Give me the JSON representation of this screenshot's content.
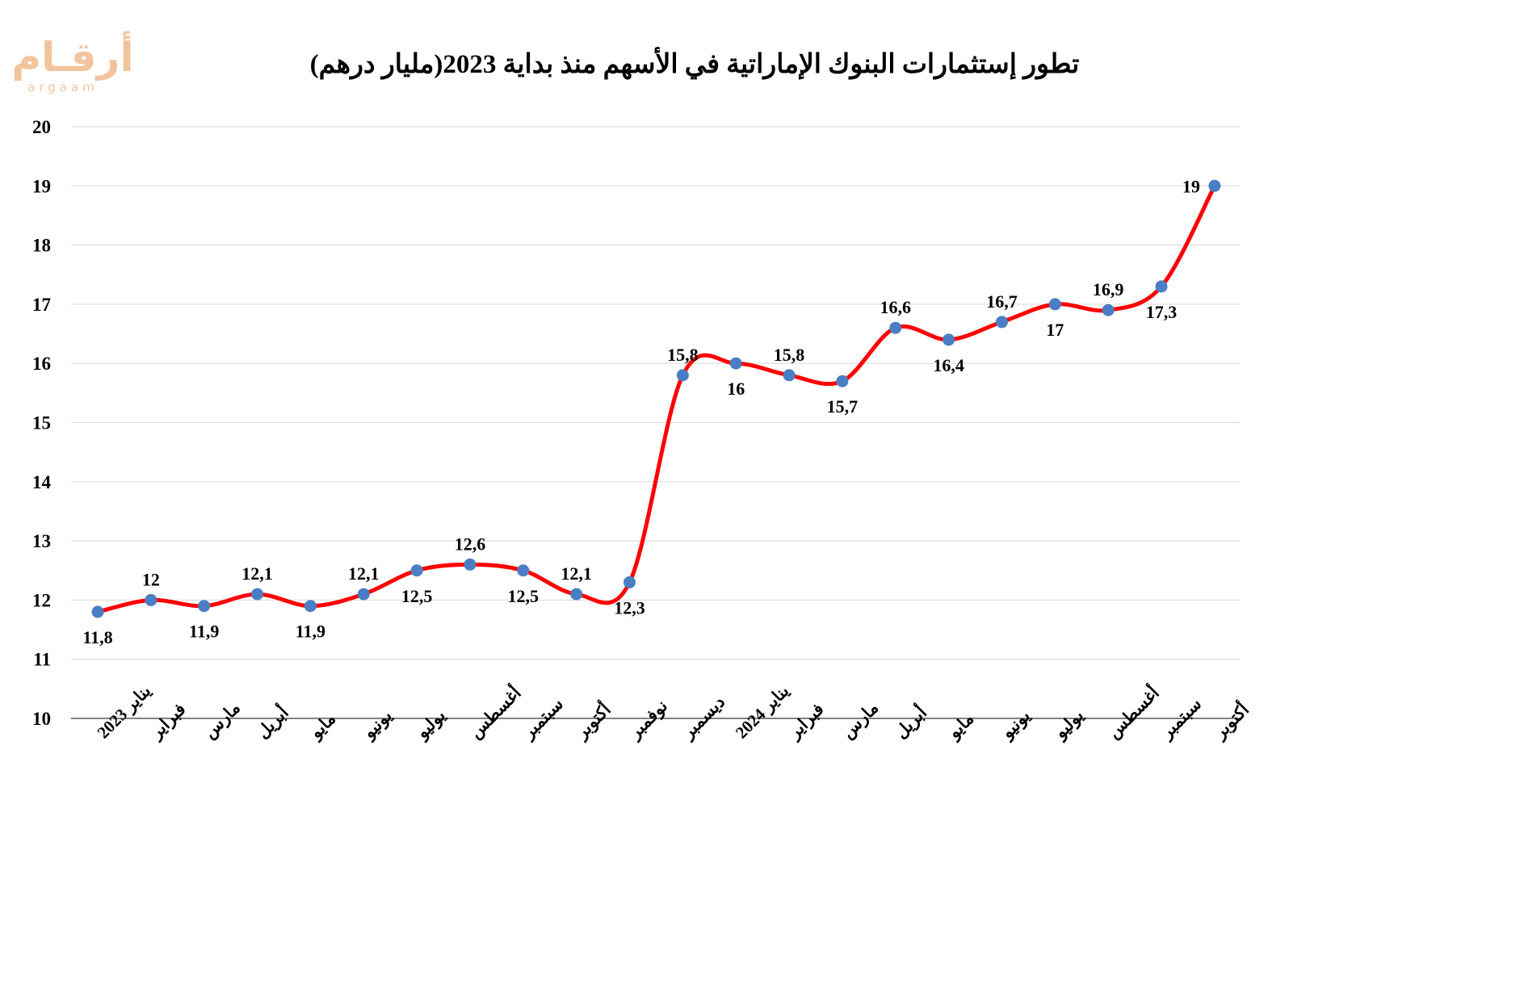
{
  "chart_data": {
    "type": "line",
    "title": "تطور إستثمارات البنوك الإماراتية في الأسهم  منذ بداية 2023(مليار درهم)",
    "xlabel": "",
    "ylabel": "",
    "ylim": [
      10,
      20
    ],
    "yticks": [
      "10",
      "11",
      "12",
      "13",
      "14",
      "15",
      "16",
      "17",
      "18",
      "19",
      "20"
    ],
    "grid": true,
    "smooth": true,
    "categories": [
      "يناير 2023",
      "فبراير",
      "مارس",
      "أبريل",
      "مايو",
      "يونيو",
      "يوليو",
      "أغسطس",
      "سبتمبر",
      "أكتوبر",
      "نوفمبر",
      "ديسمبر",
      "يناير 2024",
      "فبراير",
      "مارس",
      "أبريل",
      "مايو",
      "يونيو",
      "يوليو",
      "أغسطس",
      "سبتمبر",
      "أكتوبر"
    ],
    "values": [
      11.8,
      12,
      11.9,
      12.1,
      11.9,
      12.1,
      12.5,
      12.6,
      12.5,
      12.1,
      12.3,
      15.8,
      16,
      15.8,
      15.7,
      16.6,
      16.4,
      16.7,
      17,
      16.9,
      17.3,
      19
    ],
    "data_labels": [
      "11,8",
      "12",
      "11,9",
      "12,1",
      "11,9",
      "12,1",
      "12,5",
      "12,6",
      "12,5",
      "12,1",
      "12,3",
      "15,8",
      "16",
      "15,8",
      "15,7",
      "16,6",
      "16,4",
      "16,7",
      "17",
      "16,9",
      "17,3",
      "19"
    ],
    "label_positions": [
      "below",
      "above",
      "below",
      "above",
      "below",
      "above",
      "below",
      "above",
      "below",
      "above",
      "below",
      "above",
      "below",
      "above",
      "below",
      "above",
      "below",
      "above",
      "below",
      "above",
      "below",
      "left"
    ]
  },
  "logo": {
    "arabic": "أرقـام",
    "latin": "argaam"
  },
  "colors": {
    "line": "#ff0000",
    "marker": "#4a7ec4",
    "grid": "#d9d9d9",
    "axis": "#595959",
    "text": "#000000",
    "logo": "#f2c49e"
  }
}
